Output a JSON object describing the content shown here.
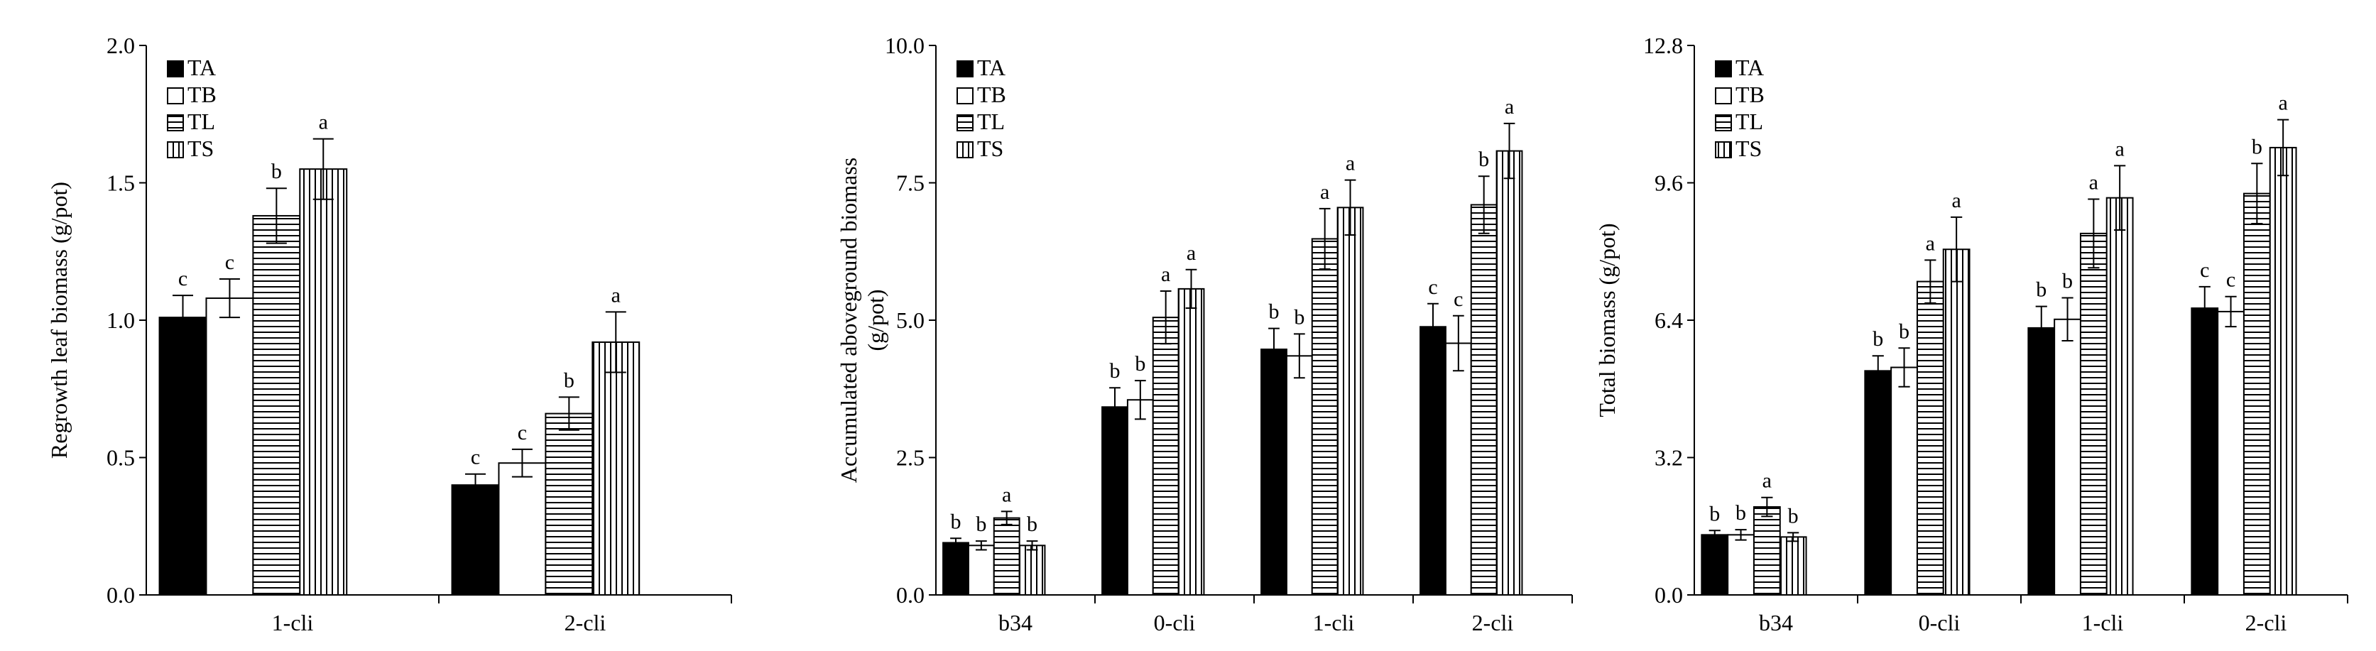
{
  "chart_data": [
    {
      "type": "bar",
      "title": "",
      "xlabel": "",
      "ylabel": "Regrowth leaf biomass (g/pot)",
      "ylim": [
        0,
        2.0
      ],
      "yticks": [
        "0.0",
        "0.5",
        "1.0",
        "1.5",
        "2.0"
      ],
      "categories": [
        "1-cli",
        "2-cli"
      ],
      "legend_position": "top-left",
      "series": [
        {
          "name": "TA",
          "values": [
            1.01,
            0.4
          ],
          "errors": [
            0.08,
            0.04
          ],
          "letters": [
            "c",
            "c"
          ]
        },
        {
          "name": "TB",
          "values": [
            1.08,
            0.48
          ],
          "errors": [
            0.07,
            0.05
          ],
          "letters": [
            "c",
            "c"
          ]
        },
        {
          "name": "TL",
          "values": [
            1.38,
            0.66
          ],
          "errors": [
            0.1,
            0.06
          ],
          "letters": [
            "b",
            "b"
          ]
        },
        {
          "name": "TS",
          "values": [
            1.55,
            0.92
          ],
          "errors": [
            0.11,
            0.11
          ],
          "letters": [
            "a",
            "a"
          ]
        }
      ]
    },
    {
      "type": "bar",
      "title": "",
      "xlabel": "",
      "ylabel": "Accumulated aboveground biomass",
      "ylabel2": "(g/pot)",
      "ylim": [
        0,
        10.0
      ],
      "yticks": [
        "0.0",
        "2.5",
        "5.0",
        "7.5",
        "10.0"
      ],
      "categories": [
        "b34",
        "0-cli",
        "1-cli",
        "2-cli"
      ],
      "legend_position": "top-left",
      "series": [
        {
          "name": "TA",
          "values": [
            0.95,
            3.42,
            4.47,
            4.88
          ],
          "errors": [
            0.08,
            0.35,
            0.38,
            0.42
          ],
          "letters": [
            "b",
            "b",
            "b",
            "c"
          ]
        },
        {
          "name": "TB",
          "values": [
            0.9,
            3.55,
            4.35,
            4.58
          ],
          "errors": [
            0.08,
            0.35,
            0.4,
            0.5
          ],
          "letters": [
            "b",
            "b",
            "b",
            "c"
          ]
        },
        {
          "name": "TL",
          "values": [
            1.4,
            5.05,
            6.48,
            7.1
          ],
          "errors": [
            0.12,
            0.48,
            0.55,
            0.52
          ],
          "letters": [
            "a",
            "a",
            "a",
            "b"
          ]
        },
        {
          "name": "TS",
          "values": [
            0.9,
            5.57,
            7.05,
            8.08
          ],
          "errors": [
            0.08,
            0.35,
            0.5,
            0.5
          ],
          "letters": [
            "b",
            "a",
            "a",
            "a"
          ]
        }
      ]
    },
    {
      "type": "bar",
      "title": "",
      "xlabel": "",
      "ylabel": "Total biomass (g/pot)",
      "ylim": [
        0,
        12.8
      ],
      "yticks": [
        "0.0",
        "3.2",
        "6.4",
        "9.6",
        "12.8"
      ],
      "categories": [
        "b34",
        "0-cli",
        "1-cli",
        "2-cli"
      ],
      "legend_position": "top-left",
      "series": [
        {
          "name": "TA",
          "values": [
            1.4,
            5.22,
            6.22,
            6.68
          ],
          "errors": [
            0.1,
            0.35,
            0.5,
            0.5
          ],
          "letters": [
            "b",
            "b",
            "b",
            "c"
          ]
        },
        {
          "name": "TB",
          "values": [
            1.4,
            5.3,
            6.42,
            6.6
          ],
          "errors": [
            0.12,
            0.45,
            0.5,
            0.35
          ],
          "letters": [
            "b",
            "b",
            "b",
            "c"
          ]
        },
        {
          "name": "TL",
          "values": [
            2.05,
            7.3,
            8.42,
            9.35
          ],
          "errors": [
            0.22,
            0.5,
            0.8,
            0.7
          ],
          "letters": [
            "a",
            "a",
            "a",
            "b"
          ]
        },
        {
          "name": "TS",
          "values": [
            1.35,
            8.05,
            9.25,
            10.42
          ],
          "errors": [
            0.1,
            0.75,
            0.75,
            0.65
          ],
          "letters": [
            "b",
            "a",
            "a",
            "a"
          ]
        }
      ]
    }
  ]
}
